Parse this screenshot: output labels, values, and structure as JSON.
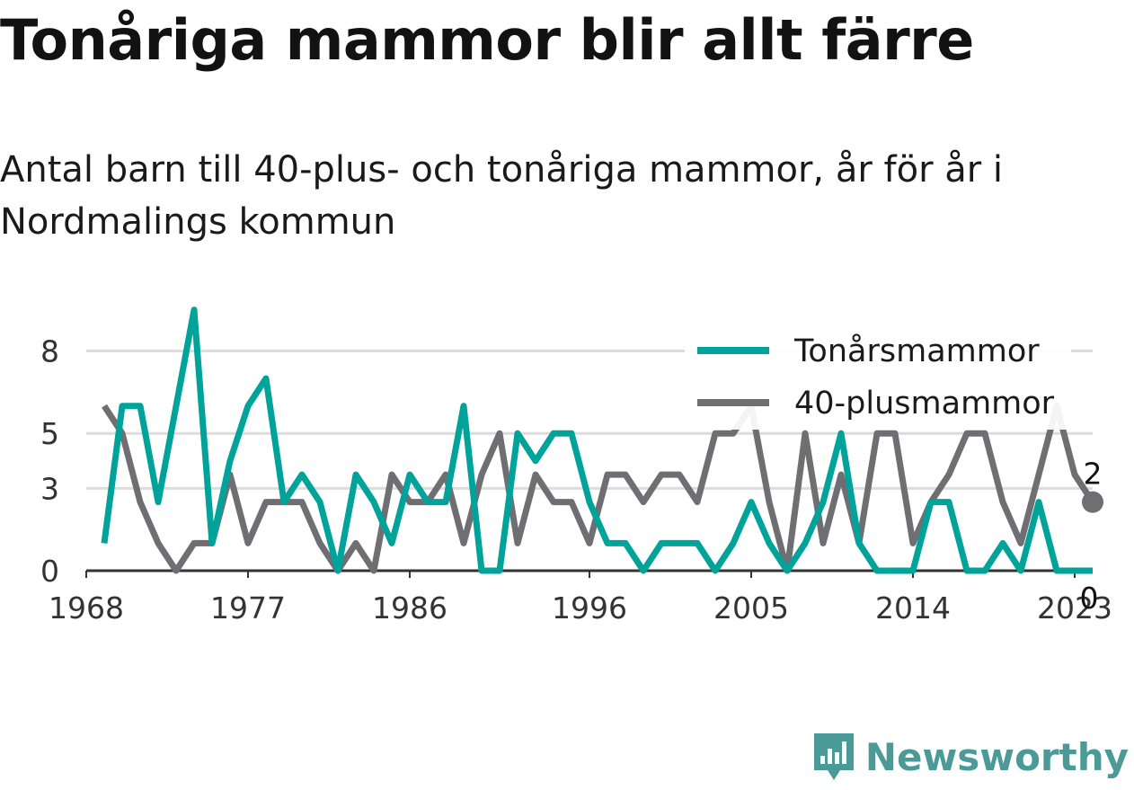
{
  "title": "Tonåriga mammor blir allt färre",
  "subtitle": "Antal barn till 40-plus- och tonåriga mammor, år för år i Nordmalings kommun",
  "brand": {
    "name": "Newsworthy",
    "icon": "newsworthy-logo-icon",
    "color": "#4b9a97"
  },
  "chart_data": {
    "type": "line",
    "title": "Tonåriga mammor blir allt färre",
    "subtitle": "Antal barn till 40-plus- och tonåriga mammor, år för år i Nordmalings kommun",
    "xlabel": "",
    "ylabel": "",
    "xlim": [
      1968,
      2024
    ],
    "ylim": [
      0,
      9
    ],
    "x_ticks": [
      1968,
      1977,
      1986,
      1996,
      2005,
      2014,
      2023
    ],
    "y_ticks": [
      0,
      3,
      5,
      8
    ],
    "grid": true,
    "legend_position": "top-right",
    "x": [
      1969,
      1970,
      1971,
      1972,
      1973,
      1974,
      1975,
      1976,
      1977,
      1978,
      1979,
      1980,
      1981,
      1982,
      1983,
      1984,
      1985,
      1986,
      1987,
      1988,
      1989,
      1990,
      1991,
      1992,
      1993,
      1994,
      1995,
      1996,
      1997,
      1998,
      1999,
      2000,
      2001,
      2002,
      2003,
      2004,
      2005,
      2006,
      2007,
      2008,
      2009,
      2010,
      2011,
      2012,
      2013,
      2014,
      2015,
      2016,
      2017,
      2018,
      2019,
      2020,
      2021,
      2022,
      2023,
      2024
    ],
    "series": [
      {
        "name": "Tonårsmammor",
        "color": "#00a39a",
        "values": [
          1,
          6,
          6,
          2.5,
          6,
          9.5,
          1,
          4,
          6,
          7,
          2.5,
          3.5,
          2.5,
          0,
          3.5,
          2.5,
          1,
          3.5,
          2.5,
          2.5,
          6,
          0,
          0,
          5,
          4,
          5,
          5,
          2.5,
          1,
          1,
          0,
          1,
          1,
          1,
          0,
          1,
          2.5,
          1,
          0,
          1,
          2.5,
          5,
          1,
          0,
          0,
          0,
          2.5,
          2.5,
          0,
          0,
          1,
          0,
          2.5,
          0,
          0,
          0
        ]
      },
      {
        "name": "40-plusmammor",
        "color": "#6f6e73",
        "values": [
          6,
          5,
          2.5,
          1,
          0,
          1,
          1,
          3.5,
          1,
          2.5,
          2.5,
          2.5,
          1,
          0,
          1,
          0,
          3.5,
          2.5,
          2.5,
          3.5,
          1,
          3.5,
          5,
          1,
          3.5,
          2.5,
          2.5,
          1,
          3.5,
          3.5,
          2.5,
          3.5,
          3.5,
          2.5,
          5,
          5,
          6,
          2.5,
          0,
          5,
          1,
          3.5,
          1,
          5,
          5,
          1,
          2.5,
          3.5,
          5,
          5,
          2.5,
          1,
          3.5,
          6,
          3.5,
          2.5
        ]
      }
    ],
    "end_labels": [
      {
        "series": "40-plusmammor",
        "label": "2"
      },
      {
        "series": "Tonårsmammor",
        "label": "0"
      }
    ]
  }
}
